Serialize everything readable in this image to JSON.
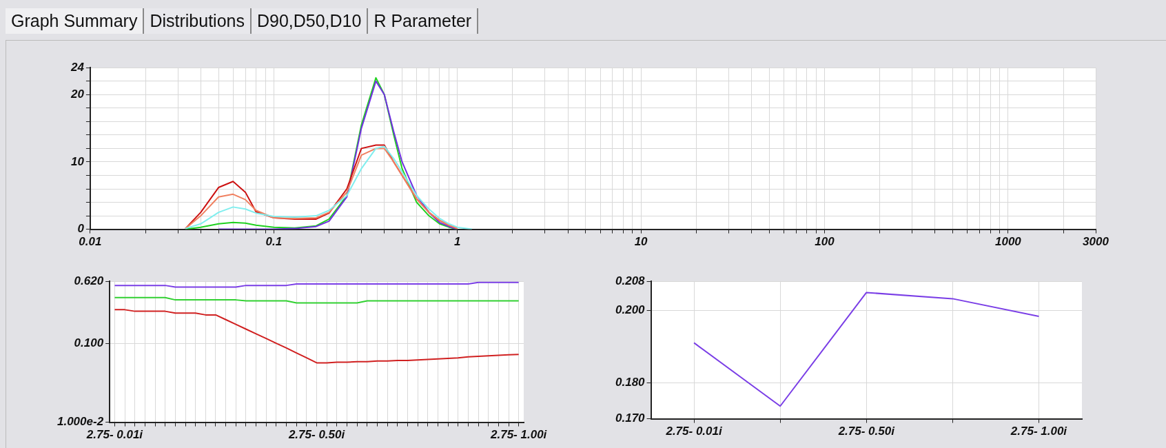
{
  "chart_data": [
    {
      "type": "line",
      "annotations": [
        "Graph Summary",
        "Distributions",
        "D90,D50,D10",
        "R Parameter"
      ],
      "log": "x",
      "grid": true,
      "legend": false,
      "marker": "none",
      "line_style": "solid",
      "x": [
        0.033,
        0.04,
        0.05,
        0.06,
        0.07,
        0.08,
        0.1,
        0.13,
        0.17,
        0.2,
        0.25,
        0.3,
        0.36,
        0.4,
        0.45,
        0.5,
        0.6,
        0.7,
        0.8,
        0.9,
        1.0,
        1.2
      ],
      "xlim": [
        0.01,
        3000
      ],
      "xticks": [
        0.01,
        {
          "value": 0.02,
          "label": null
        },
        {
          "value": 0.03,
          "label": null
        },
        {
          "value": 0.04,
          "label": null
        },
        {
          "value": 0.05,
          "label": null
        },
        {
          "value": 0.06,
          "label": null
        },
        {
          "value": 0.07,
          "label": null
        },
        {
          "value": 0.08,
          "label": null
        },
        {
          "value": 0.09,
          "label": null
        },
        0.1,
        {
          "value": 0.2,
          "label": null
        },
        {
          "value": 0.3,
          "label": null
        },
        {
          "value": 0.4,
          "label": null
        },
        {
          "value": 0.5,
          "label": null
        },
        {
          "value": 0.6,
          "label": null
        },
        {
          "value": 0.7,
          "label": null
        },
        {
          "value": 0.8,
          "label": null
        },
        {
          "value": 0.9,
          "label": null
        },
        1,
        {
          "value": 2,
          "label": null
        },
        {
          "value": 3,
          "label": null
        },
        {
          "value": 4,
          "label": null
        },
        {
          "value": 5,
          "label": null
        },
        {
          "value": 6,
          "label": null
        },
        {
          "value": 7,
          "label": null
        },
        {
          "value": 8,
          "label": null
        },
        {
          "value": 9,
          "label": null
        },
        10,
        {
          "value": 20,
          "label": null
        },
        {
          "value": 30,
          "label": null
        },
        {
          "value": 40,
          "label": null
        },
        {
          "value": 50,
          "label": null
        },
        {
          "value": 60,
          "label": null
        },
        {
          "value": 70,
          "label": null
        },
        {
          "value": 80,
          "label": null
        },
        {
          "value": 90,
          "label": null
        },
        100,
        {
          "value": 200,
          "label": null
        },
        {
          "value": 300,
          "label": null
        },
        {
          "value": 400,
          "label": null
        },
        {
          "value": 500,
          "label": null
        },
        {
          "value": 600,
          "label": null
        },
        {
          "value": 700,
          "label": null
        },
        {
          "value": 800,
          "label": null
        },
        {
          "value": 900,
          "label": null
        },
        1000,
        {
          "value": 2000,
          "label": null
        },
        3000
      ],
      "ylim": [
        0,
        24
      ],
      "yticks": [
        0,
        {
          "value": 2,
          "label": null
        },
        {
          "value": 4,
          "label": null
        },
        {
          "value": 6,
          "label": null
        },
        {
          "value": 8,
          "label": null
        },
        10,
        {
          "value": 12,
          "label": null
        },
        {
          "value": 14,
          "label": null
        },
        {
          "value": 16,
          "label": null
        },
        {
          "value": 18,
          "label": null
        },
        20,
        {
          "value": 22,
          "label": null
        },
        24
      ],
      "series": [
        {
          "color": "#80eeee",
          "values": [
            0.1,
            0.8,
            2.5,
            3.3,
            3.0,
            2.4,
            1.9,
            1.8,
            2.0,
            2.8,
            5,
            9,
            12,
            12.3,
            10.5,
            8.5,
            5,
            3,
            1.6,
            0.8,
            0.3,
            0
          ]
        },
        {
          "color": "#f08060",
          "values": [
            0.1,
            2.0,
            4.8,
            5.2,
            4.4,
            2.8,
            1.7,
            1.6,
            1.7,
            2.5,
            5.5,
            11,
            12,
            12,
            10,
            8,
            4.5,
            2.5,
            1.3,
            0.6,
            0.1,
            null
          ]
        },
        {
          "color": "#cc1010",
          "values": [
            0.1,
            2.5,
            6.2,
            7.1,
            5.5,
            2.6,
            1.7,
            1.5,
            1.5,
            2.4,
            6,
            12,
            12.5,
            12.5,
            10,
            8,
            4.5,
            2.5,
            1.3,
            0.6,
            0.1,
            null
          ]
        },
        {
          "color": "#7030e0",
          "values": [
            null,
            null,
            0,
            0,
            0,
            0,
            0,
            0.1,
            0.4,
            1.2,
            4.8,
            15,
            22,
            20,
            14.5,
            10,
            5,
            2.5,
            1,
            0.4,
            0,
            null
          ]
        },
        {
          "color": "#20d020",
          "values": [
            0,
            0.3,
            0.8,
            1.0,
            0.9,
            0.6,
            0.3,
            0.2,
            0.5,
            1.5,
            5,
            15.5,
            22.5,
            20,
            14,
            9,
            4,
            2,
            0.8,
            0.3,
            0,
            null
          ]
        }
      ]
    },
    {
      "type": "line",
      "log": "y",
      "grid": true,
      "legend": false,
      "marker": "none",
      "line_style": "solid",
      "categories": [
        "2.75- 0.01i",
        null,
        null,
        null,
        null,
        null,
        null,
        null,
        null,
        null,
        null,
        null,
        null,
        null,
        null,
        null,
        null,
        null,
        null,
        null,
        "2.75- 0.50i",
        null,
        null,
        null,
        null,
        null,
        null,
        null,
        null,
        null,
        null,
        null,
        null,
        null,
        null,
        null,
        null,
        null,
        null,
        null,
        "2.75- 1.00i"
      ],
      "ylim": [
        0.01,
        0.62
      ],
      "yticks": [
        {
          "value": 0.01,
          "label": "1.000e-2"
        },
        {
          "value": 0.1,
          "label": "0.100"
        },
        {
          "value": 0.62,
          "label": "0.620"
        }
      ],
      "series": [
        {
          "color": "#7a3ee6",
          "values": [
            0.55,
            0.55,
            0.55,
            0.55,
            0.55,
            0.55,
            0.525,
            0.525,
            0.525,
            0.525,
            0.525,
            0.525,
            0.525,
            0.55,
            0.55,
            0.55,
            0.55,
            0.55,
            0.575,
            0.575,
            0.575,
            0.575,
            0.575,
            0.575,
            0.575,
            0.575,
            0.575,
            0.575,
            0.575,
            0.575,
            0.575,
            0.575,
            0.575,
            0.575,
            0.575,
            0.575,
            0.6,
            0.6,
            0.6,
            0.6,
            0.6
          ]
        },
        {
          "color": "#30d030",
          "values": [
            0.385,
            0.385,
            0.385,
            0.385,
            0.385,
            0.385,
            0.36,
            0.36,
            0.36,
            0.36,
            0.36,
            0.36,
            0.36,
            0.35,
            0.35,
            0.35,
            0.35,
            0.35,
            0.33,
            0.33,
            0.33,
            0.33,
            0.33,
            0.33,
            0.33,
            0.35,
            0.35,
            0.35,
            0.35,
            0.35,
            0.35,
            0.35,
            0.35,
            0.35,
            0.35,
            0.35,
            0.35,
            0.35,
            0.35,
            0.35,
            0.35
          ]
        },
        {
          "color": "#d02020",
          "values": [
            0.27,
            0.27,
            0.258,
            0.258,
            0.258,
            0.258,
            0.245,
            0.245,
            0.245,
            0.232,
            0.232,
            0.202,
            0.176,
            0.153,
            0.133,
            0.116,
            0.101,
            0.088,
            0.076,
            0.066,
            0.057,
            0.057,
            0.058,
            0.058,
            0.059,
            0.059,
            0.06,
            0.06,
            0.061,
            0.061,
            0.062,
            0.063,
            0.064,
            0.065,
            0.066,
            0.068,
            0.069,
            0.07,
            0.071,
            0.072,
            0.073
          ]
        }
      ]
    },
    {
      "type": "line",
      "grid": true,
      "legend": false,
      "marker": "none",
      "line_style": "solid",
      "categories": [
        "2.75- 0.01i",
        null,
        "2.75- 0.50i",
        null,
        "2.75- 1.00i"
      ],
      "ylim": [
        0.17,
        0.208
      ],
      "yticks": [
        {
          "value": 0.17,
          "label": "0.170"
        },
        {
          "value": 0.18,
          "label": "0.180"
        },
        {
          "value": 0.2,
          "label": "0.200"
        },
        {
          "value": 0.208,
          "label": "0.208"
        }
      ],
      "series": [
        {
          "color": "#7a3ee6",
          "values": [
            0.191,
            0.1735,
            0.2049,
            0.2032,
            0.1983
          ]
        }
      ]
    }
  ]
}
